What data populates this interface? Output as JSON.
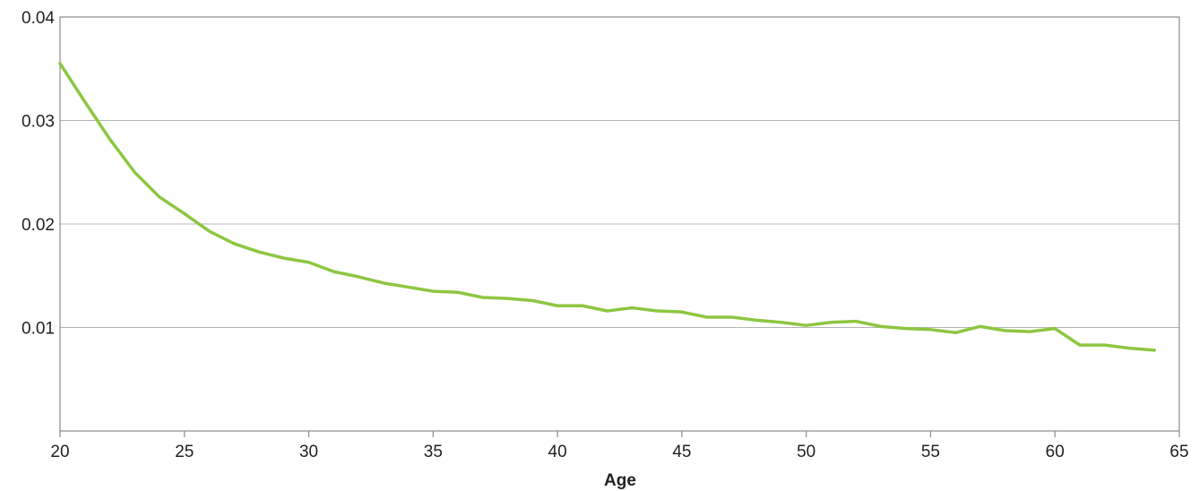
{
  "chart_data": {
    "type": "line",
    "title": "",
    "xlabel": "Age",
    "ylabel": "",
    "xlim": [
      20,
      65
    ],
    "ylim": [
      0,
      0.04
    ],
    "x_ticks": [
      20,
      25,
      30,
      35,
      40,
      45,
      50,
      55,
      60,
      65
    ],
    "x_tick_labels": [
      "20",
      "25",
      "30",
      "35",
      "40",
      "45",
      "50",
      "55",
      "60",
      "65"
    ],
    "y_ticks": [
      0.01,
      0.02,
      0.03,
      0.04
    ],
    "y_tick_labels": [
      "0.01",
      "0.02",
      "0.03",
      "0.04"
    ],
    "grid": "horizontal",
    "legend": "none",
    "series": [
      {
        "color": "#8dc641",
        "x": [
          20,
          21,
          22,
          23,
          24,
          25,
          26,
          27,
          28,
          29,
          30,
          31,
          32,
          33,
          34,
          35,
          36,
          37,
          38,
          39,
          40,
          41,
          42,
          43,
          44,
          45,
          46,
          47,
          48,
          49,
          50,
          51,
          52,
          53,
          54,
          55,
          56,
          57,
          58,
          59,
          60,
          61,
          62,
          63,
          64
        ],
        "values": [
          0.0355,
          0.0318,
          0.0282,
          0.025,
          0.0226,
          0.021,
          0.0193,
          0.0181,
          0.0173,
          0.0167,
          0.0163,
          0.0154,
          0.0149,
          0.0143,
          0.0139,
          0.0135,
          0.0134,
          0.0129,
          0.0128,
          0.0126,
          0.0121,
          0.0121,
          0.0116,
          0.0119,
          0.0116,
          0.0115,
          0.011,
          0.011,
          0.0107,
          0.0105,
          0.0102,
          0.0105,
          0.0106,
          0.0101,
          0.0099,
          0.0098,
          0.0095,
          0.0101,
          0.0097,
          0.0096,
          0.0099,
          0.0083,
          0.0083,
          0.008,
          0.0078
        ]
      }
    ]
  }
}
